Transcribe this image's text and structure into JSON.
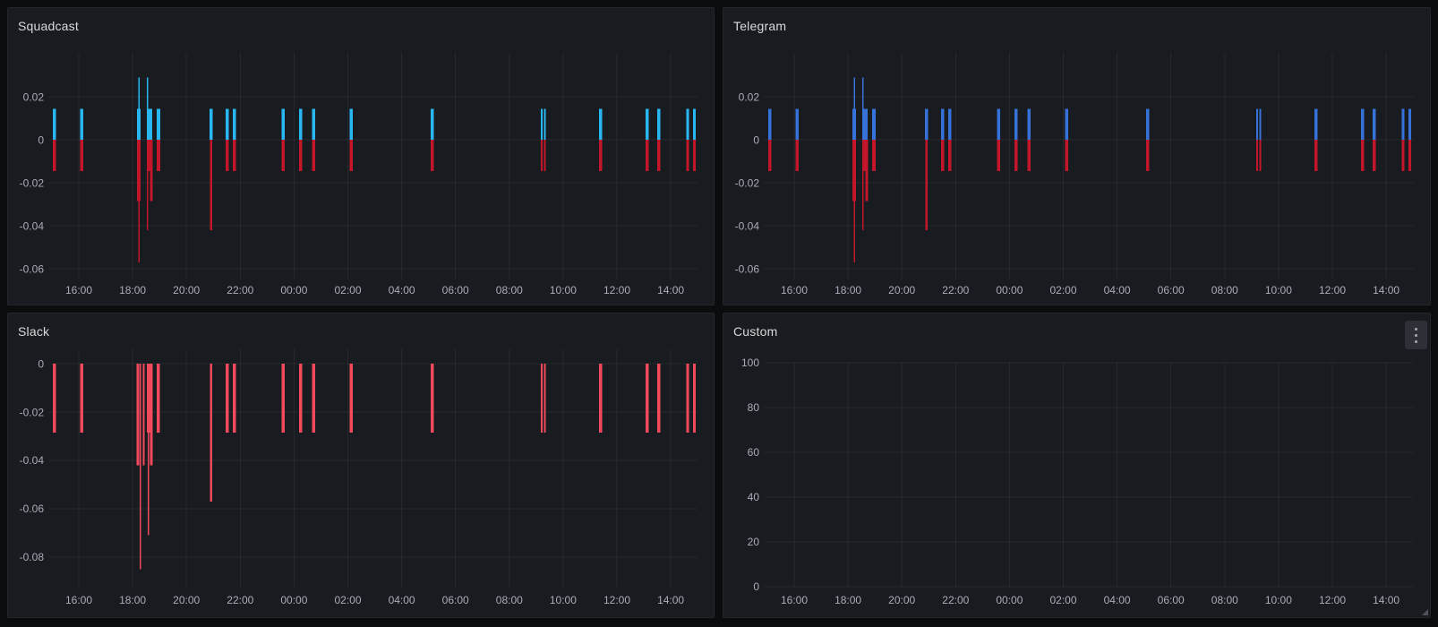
{
  "dashboard": {
    "panels": [
      {
        "title": "Squadcast",
        "menu_visible": false,
        "resize_handle_visible": false
      },
      {
        "title": "Telegram",
        "menu_visible": false,
        "resize_handle_visible": false
      },
      {
        "title": "Slack",
        "menu_visible": false,
        "resize_handle_visible": false
      },
      {
        "title": "Custom",
        "menu_visible": true,
        "resize_handle_visible": true
      }
    ],
    "menu_icon": "kebab-vertical-three-dots"
  },
  "theme": {
    "page_bg": "#0b0c0e",
    "panel_bg": "#181b1f",
    "panel_border": "#24262c",
    "grid_color": "rgba(204,204,220,0.08)",
    "tick_text_color": "rgba(204,204,220,0.82)",
    "title_color": "#d8d9da",
    "squadcast_up": "#28b7f0",
    "telegram_up": "#3572da",
    "negative_red": "#c4162a",
    "slack_red": "#f2495c"
  },
  "chart_data": [
    {
      "panel_id": "squadcast",
      "title": "Squadcast",
      "type": "bar",
      "x_unit": "hours since 15:00 (time axis)",
      "xlim": [
        -0.1,
        24.0
      ],
      "x_ticks": [
        {
          "h": 1,
          "label": "16:00"
        },
        {
          "h": 3,
          "label": "18:00"
        },
        {
          "h": 5,
          "label": "20:00"
        },
        {
          "h": 7,
          "label": "22:00"
        },
        {
          "h": 9,
          "label": "00:00"
        },
        {
          "h": 11,
          "label": "02:00"
        },
        {
          "h": 13,
          "label": "04:00"
        },
        {
          "h": 15,
          "label": "06:00"
        },
        {
          "h": 17,
          "label": "08:00"
        },
        {
          "h": 19,
          "label": "10:00"
        },
        {
          "h": 21,
          "label": "12:00"
        },
        {
          "h": 23,
          "label": "14:00"
        }
      ],
      "ylim": [
        -0.0645,
        0.0405
      ],
      "y_ticks": [
        {
          "v": 0.02,
          "label": "0.02"
        },
        {
          "v": 0,
          "label": "0"
        },
        {
          "v": -0.02,
          "label": "-0.02"
        },
        {
          "v": -0.04,
          "label": "-0.04"
        },
        {
          "v": -0.06,
          "label": "-0.06"
        }
      ],
      "grid": true,
      "series": [
        {
          "name": "positive",
          "color": "#28b7f0",
          "bars": [
            {
              "t": 0.1,
              "v": 0.0145,
              "w": 3.5
            },
            {
              "t": 1.1,
              "v": 0.0145,
              "w": 3.5
            },
            {
              "t": 3.23,
              "v": 0.0145,
              "w": 4
            },
            {
              "t": 3.23,
              "v": 0.029,
              "w": 1.5
            },
            {
              "t": 3.63,
              "v": 0.0145,
              "w": 6
            },
            {
              "t": 3.56,
              "v": 0.029,
              "w": 1.5
            },
            {
              "t": 3.96,
              "v": 0.0145,
              "w": 4
            },
            {
              "t": 5.92,
              "v": 0.0145,
              "w": 3.5
            },
            {
              "t": 6.52,
              "v": 0.0145,
              "w": 3.5
            },
            {
              "t": 6.79,
              "v": 0.0145,
              "w": 3.5
            },
            {
              "t": 8.59,
              "v": 0.0145,
              "w": 3.5
            },
            {
              "t": 9.25,
              "v": 0.0145,
              "w": 3.5
            },
            {
              "t": 9.72,
              "v": 0.0145,
              "w": 3.5
            },
            {
              "t": 11.12,
              "v": 0.0145,
              "w": 3.5
            },
            {
              "t": 14.14,
              "v": 0.0145,
              "w": 3.5
            },
            {
              "t": 18.2,
              "v": 0.0145,
              "w": 2
            },
            {
              "t": 18.32,
              "v": 0.0145,
              "w": 2
            },
            {
              "t": 20.4,
              "v": 0.0145,
              "w": 3.5
            },
            {
              "t": 22.13,
              "v": 0.0145,
              "w": 3.5
            },
            {
              "t": 22.56,
              "v": 0.0145,
              "w": 3.5
            },
            {
              "t": 23.63,
              "v": 0.0145,
              "w": 3
            },
            {
              "t": 23.88,
              "v": 0.0145,
              "w": 3
            }
          ]
        },
        {
          "name": "negative",
          "color": "#c4162a",
          "bars": [
            {
              "t": 0.1,
              "v": -0.0145,
              "w": 3.5
            },
            {
              "t": 1.1,
              "v": -0.0145,
              "w": 3.5
            },
            {
              "t": 3.23,
              "v": -0.0285,
              "w": 4
            },
            {
              "t": 3.23,
              "v": -0.057,
              "w": 1.5
            },
            {
              "t": 3.63,
              "v": -0.0145,
              "w": 6
            },
            {
              "t": 3.7,
              "v": -0.0285,
              "w": 3
            },
            {
              "t": 3.56,
              "v": -0.042,
              "w": 1.5
            },
            {
              "t": 3.96,
              "v": -0.0145,
              "w": 4
            },
            {
              "t": 5.92,
              "v": -0.042,
              "w": 2.5
            },
            {
              "t": 6.52,
              "v": -0.0145,
              "w": 3.5
            },
            {
              "t": 6.79,
              "v": -0.0145,
              "w": 3.5
            },
            {
              "t": 8.59,
              "v": -0.0145,
              "w": 3.5
            },
            {
              "t": 9.25,
              "v": -0.0145,
              "w": 3.5
            },
            {
              "t": 9.72,
              "v": -0.0145,
              "w": 3.5
            },
            {
              "t": 11.12,
              "v": -0.0145,
              "w": 3.5
            },
            {
              "t": 14.14,
              "v": -0.0145,
              "w": 3.5
            },
            {
              "t": 18.2,
              "v": -0.0145,
              "w": 2
            },
            {
              "t": 18.32,
              "v": -0.0145,
              "w": 2
            },
            {
              "t": 20.4,
              "v": -0.0145,
              "w": 3.5
            },
            {
              "t": 22.13,
              "v": -0.0145,
              "w": 3.5
            },
            {
              "t": 22.56,
              "v": -0.0145,
              "w": 3.5
            },
            {
              "t": 23.63,
              "v": -0.0145,
              "w": 3
            },
            {
              "t": 23.88,
              "v": -0.0145,
              "w": 3
            }
          ]
        }
      ]
    },
    {
      "panel_id": "telegram",
      "title": "Telegram",
      "type": "bar",
      "x_unit": "hours since 15:00 (time axis)",
      "xlim": [
        -0.1,
        24.0
      ],
      "x_ticks": [
        {
          "h": 1,
          "label": "16:00"
        },
        {
          "h": 3,
          "label": "18:00"
        },
        {
          "h": 5,
          "label": "20:00"
        },
        {
          "h": 7,
          "label": "22:00"
        },
        {
          "h": 9,
          "label": "00:00"
        },
        {
          "h": 11,
          "label": "02:00"
        },
        {
          "h": 13,
          "label": "04:00"
        },
        {
          "h": 15,
          "label": "06:00"
        },
        {
          "h": 17,
          "label": "08:00"
        },
        {
          "h": 19,
          "label": "10:00"
        },
        {
          "h": 21,
          "label": "12:00"
        },
        {
          "h": 23,
          "label": "14:00"
        }
      ],
      "ylim": [
        -0.0645,
        0.0405
      ],
      "y_ticks": [
        {
          "v": 0.02,
          "label": "0.02"
        },
        {
          "v": 0,
          "label": "0"
        },
        {
          "v": -0.02,
          "label": "-0.02"
        },
        {
          "v": -0.04,
          "label": "-0.04"
        },
        {
          "v": -0.06,
          "label": "-0.06"
        }
      ],
      "grid": true,
      "series": [
        {
          "name": "positive",
          "color": "#3572da",
          "bars": [
            {
              "t": 0.1,
              "v": 0.0145,
              "w": 3.5
            },
            {
              "t": 1.1,
              "v": 0.0145,
              "w": 3.5
            },
            {
              "t": 3.23,
              "v": 0.0145,
              "w": 4
            },
            {
              "t": 3.23,
              "v": 0.029,
              "w": 1.5
            },
            {
              "t": 3.63,
              "v": 0.0145,
              "w": 6
            },
            {
              "t": 3.56,
              "v": 0.029,
              "w": 1.5
            },
            {
              "t": 3.96,
              "v": 0.0145,
              "w": 4
            },
            {
              "t": 5.92,
              "v": 0.0145,
              "w": 3.5
            },
            {
              "t": 6.52,
              "v": 0.0145,
              "w": 3.5
            },
            {
              "t": 6.79,
              "v": 0.0145,
              "w": 3.5
            },
            {
              "t": 8.59,
              "v": 0.0145,
              "w": 3.5
            },
            {
              "t": 9.25,
              "v": 0.0145,
              "w": 3.5
            },
            {
              "t": 9.72,
              "v": 0.0145,
              "w": 3.5
            },
            {
              "t": 11.12,
              "v": 0.0145,
              "w": 3.5
            },
            {
              "t": 14.14,
              "v": 0.0145,
              "w": 3.5
            },
            {
              "t": 18.2,
              "v": 0.0145,
              "w": 2
            },
            {
              "t": 18.32,
              "v": 0.0145,
              "w": 2
            },
            {
              "t": 20.4,
              "v": 0.0145,
              "w": 3.5
            },
            {
              "t": 22.13,
              "v": 0.0145,
              "w": 3.5
            },
            {
              "t": 22.56,
              "v": 0.0145,
              "w": 3.5
            },
            {
              "t": 23.63,
              "v": 0.0145,
              "w": 3
            },
            {
              "t": 23.88,
              "v": 0.0145,
              "w": 3
            }
          ]
        },
        {
          "name": "negative",
          "color": "#c4162a",
          "bars": [
            {
              "t": 0.1,
              "v": -0.0145,
              "w": 3.5
            },
            {
              "t": 1.1,
              "v": -0.0145,
              "w": 3.5
            },
            {
              "t": 3.23,
              "v": -0.0285,
              "w": 4
            },
            {
              "t": 3.23,
              "v": -0.057,
              "w": 1.5
            },
            {
              "t": 3.63,
              "v": -0.0145,
              "w": 6
            },
            {
              "t": 3.7,
              "v": -0.0285,
              "w": 3
            },
            {
              "t": 3.56,
              "v": -0.042,
              "w": 1.5
            },
            {
              "t": 3.96,
              "v": -0.0145,
              "w": 4
            },
            {
              "t": 5.92,
              "v": -0.042,
              "w": 2.5
            },
            {
              "t": 6.52,
              "v": -0.0145,
              "w": 3.5
            },
            {
              "t": 6.79,
              "v": -0.0145,
              "w": 3.5
            },
            {
              "t": 8.59,
              "v": -0.0145,
              "w": 3.5
            },
            {
              "t": 9.25,
              "v": -0.0145,
              "w": 3.5
            },
            {
              "t": 9.72,
              "v": -0.0145,
              "w": 3.5
            },
            {
              "t": 11.12,
              "v": -0.0145,
              "w": 3.5
            },
            {
              "t": 14.14,
              "v": -0.0145,
              "w": 3.5
            },
            {
              "t": 18.2,
              "v": -0.0145,
              "w": 2
            },
            {
              "t": 18.32,
              "v": -0.0145,
              "w": 2
            },
            {
              "t": 20.4,
              "v": -0.0145,
              "w": 3.5
            },
            {
              "t": 22.13,
              "v": -0.0145,
              "w": 3.5
            },
            {
              "t": 22.56,
              "v": -0.0145,
              "w": 3.5
            },
            {
              "t": 23.63,
              "v": -0.0145,
              "w": 3
            },
            {
              "t": 23.88,
              "v": -0.0145,
              "w": 3
            }
          ]
        }
      ]
    },
    {
      "panel_id": "slack",
      "title": "Slack",
      "type": "bar",
      "x_unit": "hours since 15:00 (time axis)",
      "xlim": [
        -0.1,
        24.0
      ],
      "x_ticks": [
        {
          "h": 1,
          "label": "16:00"
        },
        {
          "h": 3,
          "label": "18:00"
        },
        {
          "h": 5,
          "label": "20:00"
        },
        {
          "h": 7,
          "label": "22:00"
        },
        {
          "h": 9,
          "label": "00:00"
        },
        {
          "h": 11,
          "label": "02:00"
        },
        {
          "h": 13,
          "label": "04:00"
        },
        {
          "h": 15,
          "label": "06:00"
        },
        {
          "h": 17,
          "label": "08:00"
        },
        {
          "h": 19,
          "label": "10:00"
        },
        {
          "h": 21,
          "label": "12:00"
        },
        {
          "h": 23,
          "label": "14:00"
        }
      ],
      "ylim": [
        -0.0923,
        0.006
      ],
      "y_ticks": [
        {
          "v": 0,
          "label": "0"
        },
        {
          "v": -0.02,
          "label": "-0.02"
        },
        {
          "v": -0.04,
          "label": "-0.04"
        },
        {
          "v": -0.06,
          "label": "-0.06"
        },
        {
          "v": -0.08,
          "label": "-0.08"
        }
      ],
      "grid": true,
      "series": [
        {
          "name": "negative",
          "color": "#f2495c",
          "bars": [
            {
              "t": 0.1,
              "v": -0.0285,
              "w": 3.5
            },
            {
              "t": 1.1,
              "v": -0.0285,
              "w": 3.5
            },
            {
              "t": 3.2,
              "v": -0.042,
              "w": 3
            },
            {
              "t": 3.28,
              "v": -0.085,
              "w": 1.5
            },
            {
              "t": 3.42,
              "v": -0.042,
              "w": 2
            },
            {
              "t": 3.63,
              "v": -0.0285,
              "w": 6
            },
            {
              "t": 3.7,
              "v": -0.042,
              "w": 3
            },
            {
              "t": 3.58,
              "v": -0.071,
              "w": 1.5
            },
            {
              "t": 3.96,
              "v": -0.0285,
              "w": 3.5
            },
            {
              "t": 5.92,
              "v": -0.057,
              "w": 2.5
            },
            {
              "t": 6.52,
              "v": -0.0285,
              "w": 3.5
            },
            {
              "t": 6.79,
              "v": -0.0285,
              "w": 3.5
            },
            {
              "t": 8.59,
              "v": -0.0285,
              "w": 3.5
            },
            {
              "t": 9.25,
              "v": -0.0285,
              "w": 3.5
            },
            {
              "t": 9.72,
              "v": -0.0285,
              "w": 3.5
            },
            {
              "t": 11.12,
              "v": -0.0285,
              "w": 3.5
            },
            {
              "t": 14.14,
              "v": -0.0285,
              "w": 3.5
            },
            {
              "t": 18.2,
              "v": -0.0285,
              "w": 2
            },
            {
              "t": 18.32,
              "v": -0.0285,
              "w": 2
            },
            {
              "t": 20.4,
              "v": -0.0285,
              "w": 3.5
            },
            {
              "t": 22.13,
              "v": -0.0285,
              "w": 3.5
            },
            {
              "t": 22.56,
              "v": -0.0285,
              "w": 3.5
            },
            {
              "t": 23.63,
              "v": -0.0285,
              "w": 3
            },
            {
              "t": 23.88,
              "v": -0.0285,
              "w": 3
            }
          ]
        }
      ]
    },
    {
      "panel_id": "custom",
      "title": "Custom",
      "type": "bar",
      "x_unit": "hours since 15:00 (time axis)",
      "xlim": [
        -0.1,
        24.0
      ],
      "grid_top_at_first_tick": true,
      "x_ticks": [
        {
          "h": 1,
          "label": "16:00"
        },
        {
          "h": 3,
          "label": "18:00"
        },
        {
          "h": 5,
          "label": "20:00"
        },
        {
          "h": 7,
          "label": "22:00"
        },
        {
          "h": 9,
          "label": "00:00"
        },
        {
          "h": 11,
          "label": "02:00"
        },
        {
          "h": 13,
          "label": "04:00"
        },
        {
          "h": 15,
          "label": "06:00"
        },
        {
          "h": 17,
          "label": "08:00"
        },
        {
          "h": 19,
          "label": "10:00"
        },
        {
          "h": 21,
          "label": "12:00"
        },
        {
          "h": 23,
          "label": "14:00"
        }
      ],
      "ylim": [
        0,
        106
      ],
      "y_ticks": [
        {
          "v": 100,
          "label": "100"
        },
        {
          "v": 80,
          "label": "80"
        },
        {
          "v": 60,
          "label": "60"
        },
        {
          "v": 40,
          "label": "40"
        },
        {
          "v": 20,
          "label": "20"
        },
        {
          "v": 0,
          "label": "0"
        }
      ],
      "grid": true,
      "series": []
    }
  ]
}
